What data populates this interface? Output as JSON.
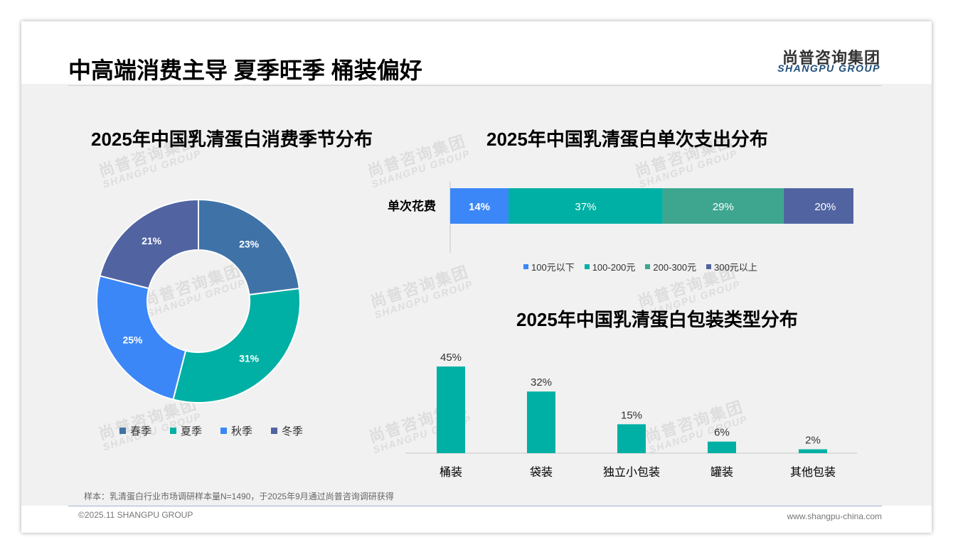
{
  "page": {
    "title": "中高端消费主导 夏季旺季 桶装偏好",
    "logo_cn": "尚普咨询集团",
    "logo_en": "SHANGPU GROUP",
    "watermark_cn": "尚普咨询集团",
    "watermark_en": "SHANGPU GROUP",
    "footer_note": "样本：乳清蛋白行业市场调研样本量N=1490，于2025年9月通过尚普咨询调研获得",
    "copyright": "©2025.11 SHANGPU GROUP",
    "website": "www.shangpu-china.com"
  },
  "colors": {
    "spring": "#3f73a8",
    "summer": "#00b0a4",
    "autumn": "#3b87f7",
    "winter": "#5164a1",
    "spend_1": "#3b87f7",
    "spend_2": "#00b0a4",
    "spend_3": "#3ea68f",
    "spend_4": "#5164a1",
    "bar": "#00b0a4"
  },
  "chart_data": [
    {
      "type": "pie",
      "title": "2025年中国乳清蛋白消费季节分布",
      "donut": true,
      "categories": [
        "春季",
        "夏季",
        "秋季",
        "冬季"
      ],
      "values": [
        23,
        31,
        25,
        21
      ],
      "labels": [
        "23%",
        "31%",
        "25%",
        "21%"
      ],
      "legend_position": "bottom"
    },
    {
      "type": "bar",
      "stacked": true,
      "orientation": "horizontal",
      "title": "2025年中国乳清蛋白单次支出分布",
      "categories": [
        "单次花费"
      ],
      "series": [
        {
          "name": "100元以下",
          "values": [
            14
          ],
          "label": "14%"
        },
        {
          "name": "100-200元",
          "values": [
            37
          ],
          "label": "37%"
        },
        {
          "name": "200-300元",
          "values": [
            29
          ],
          "label": "29%"
        },
        {
          "name": "300元以上",
          "values": [
            20
          ],
          "label": "20%"
        }
      ],
      "legend_position": "bottom"
    },
    {
      "type": "bar",
      "title": "2025年中国乳清蛋白包装类型分布",
      "categories": [
        "桶装",
        "袋装",
        "独立小包装",
        "罐装",
        "其他包装"
      ],
      "values": [
        45,
        32,
        15,
        6,
        2
      ],
      "labels": [
        "45%",
        "32%",
        "15%",
        "6%",
        "2%"
      ]
    }
  ]
}
